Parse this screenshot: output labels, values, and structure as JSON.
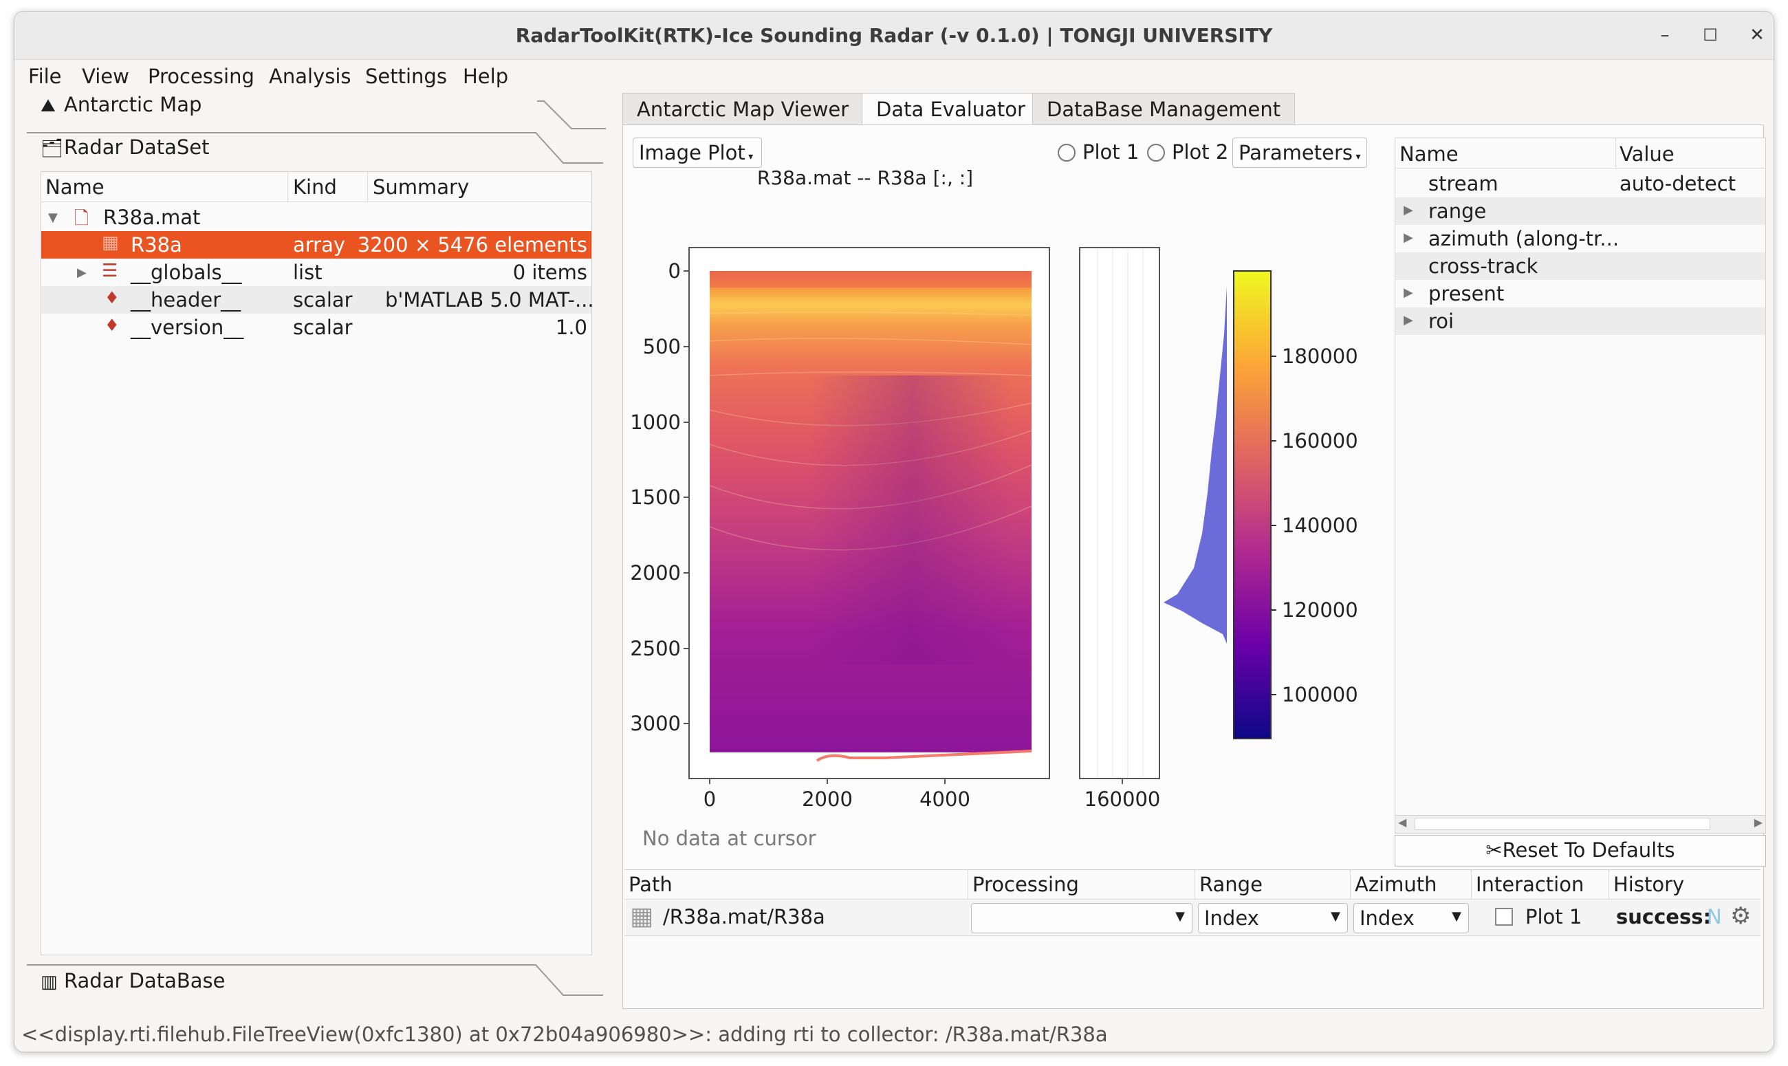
{
  "window": {
    "title": "RadarToolKit(RTK)-Ice Sounding Radar (-v 0.1.0) | TONGJI UNIVERSITY",
    "minimize": "–",
    "maximize": "☐",
    "close": "✕"
  },
  "menu": [
    "File",
    "View",
    "Processing",
    "Analysis",
    "Settings",
    "Help"
  ],
  "left": {
    "antarctic_map": "Antarctic Map",
    "radar_dataset": "Radar DataSet",
    "radar_database": "Radar DataBase",
    "tree_headers": [
      "Name",
      "Kind",
      "Summary"
    ],
    "tree_rows": [
      {
        "name": "R38a.mat",
        "kind": "",
        "summary": ""
      },
      {
        "name": "R38a",
        "kind": "array",
        "summary": "3200 × 5476 elements"
      },
      {
        "name": "__globals__",
        "kind": "list",
        "summary": "0 items"
      },
      {
        "name": "__header__",
        "kind": "scalar",
        "summary": "b'MATLAB 5.0 MAT-..."
      },
      {
        "name": "__version__",
        "kind": "scalar",
        "summary": "1.0"
      }
    ],
    "selection_color": "#e95420"
  },
  "tabs": [
    "Antarctic Map Viewer",
    "Data Evaluator",
    "DataBase Management"
  ],
  "plot_controls": {
    "plot_type": "Image Plot",
    "plot1": "Plot 1",
    "plot2": "Plot 2",
    "parameters": "Parameters"
  },
  "plot": {
    "title": "R38a.mat -- R38a [:, :]",
    "y_ticks": [
      "0",
      "500",
      "1000",
      "1500",
      "2000",
      "2500",
      "3000"
    ],
    "x_ticks": [
      "0",
      "2000",
      "4000"
    ],
    "profile_x_tick": "160000",
    "colorbar_ticks": [
      "180000",
      "160000",
      "140000",
      "120000",
      "100000"
    ],
    "cursor_text": "No data at cursor"
  },
  "params": {
    "headers": [
      "Name",
      "Value"
    ],
    "rows": [
      {
        "name": "stream",
        "value": "auto-detect",
        "expandable": false
      },
      {
        "name": "range",
        "value": "",
        "expandable": true
      },
      {
        "name": "azimuth (along-tr...",
        "value": "",
        "expandable": true
      },
      {
        "name": "cross-track",
        "value": "",
        "expandable": false
      },
      {
        "name": "present",
        "value": "",
        "expandable": true
      },
      {
        "name": "roi",
        "value": "",
        "expandable": true
      }
    ],
    "reset": "Reset To Defaults"
  },
  "bottom": {
    "headers": [
      "Path",
      "Processing",
      "Range",
      "Azimuth",
      "Interaction",
      "History"
    ],
    "path": "/R38a.mat/R38a",
    "processing": "",
    "range": "Index",
    "azimuth": "Index",
    "interaction": "Plot 1",
    "history": "success:",
    "history_tail": "N"
  },
  "status": "<<display.rti.filehub.FileTreeView(0xfc1380) at 0x72b04a906980>>: adding rti to collector: /R38a.mat/R38a"
}
